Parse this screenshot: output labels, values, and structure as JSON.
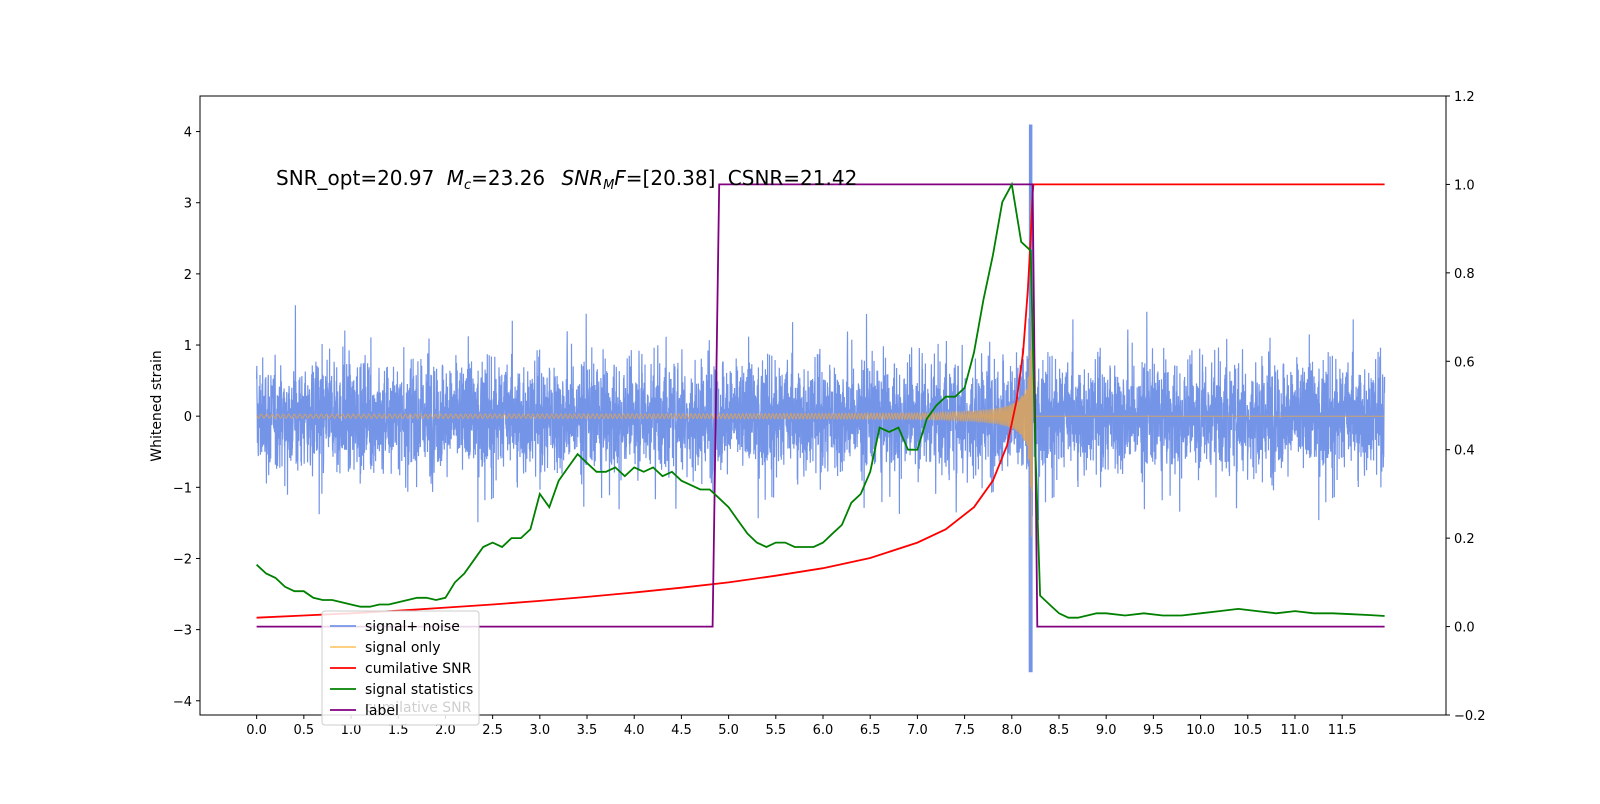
{
  "chart_data": {
    "type": "line",
    "annotation": {
      "snr_opt": "SNR_opt=20.97",
      "mc_sym": "M",
      "mc_sub": "c",
      "mc_val": "=23.26",
      "snrmf_sym": "SNR",
      "snrmf_sub": "M",
      "snrmf_f": "F",
      "snrmf_val": "=[20.38]",
      "csnr": "CSNR=21.42"
    },
    "ylabel": "Whitened strain",
    "xlim": [
      -0.6,
      12.6
    ],
    "ylim": [
      -4.2,
      4.5
    ],
    "y2lim": [
      -0.2,
      1.2
    ],
    "xticks": [
      "0.0",
      "0.5",
      "1.0",
      "1.5",
      "2.0",
      "2.5",
      "3.0",
      "3.5",
      "4.0",
      "4.5",
      "5.0",
      "5.5",
      "6.0",
      "6.5",
      "7.0",
      "7.5",
      "8.0",
      "8.5",
      "9.0",
      "9.5",
      "10.0",
      "10.5",
      "11.0",
      "11.5"
    ],
    "yticks": [
      "4",
      "3",
      "2",
      "1",
      "0",
      "−1",
      "−2",
      "−3",
      "−4"
    ],
    "y2ticks": [
      "1.2",
      "1.0",
      "0.8",
      "0.6",
      "0.4",
      "0.2",
      "0.0",
      "−0.2"
    ],
    "legend": {
      "position": "lower-left",
      "entries": [
        {
          "label": "signal+ noise",
          "color": "#7494e8"
        },
        {
          "label": "signal only",
          "color": "#ffc870"
        },
        {
          "label": "cumilative SNR",
          "color": "#ff0000"
        },
        {
          "label": "signal statistics",
          "color": "#008000"
        },
        {
          "label": "label",
          "color": "#800080"
        }
      ],
      "ghost_text": "cumilative SNR"
    },
    "series": [
      {
        "name": "signal statistics",
        "axis": "right",
        "color": "#008000",
        "x": [
          0.0,
          0.1,
          0.2,
          0.3,
          0.4,
          0.5,
          0.6,
          0.7,
          0.8,
          0.9,
          1.0,
          1.1,
          1.2,
          1.3,
          1.4,
          1.5,
          1.6,
          1.7,
          1.8,
          1.9,
          2.0,
          2.1,
          2.2,
          2.3,
          2.4,
          2.5,
          2.6,
          2.7,
          2.8,
          2.9,
          3.0,
          3.1,
          3.2,
          3.3,
          3.4,
          3.5,
          3.6,
          3.7,
          3.8,
          3.9,
          4.0,
          4.1,
          4.2,
          4.3,
          4.4,
          4.5,
          4.6,
          4.7,
          4.8,
          4.9,
          5.0,
          5.1,
          5.2,
          5.3,
          5.4,
          5.5,
          5.6,
          5.7,
          5.8,
          5.9,
          6.0,
          6.1,
          6.2,
          6.3,
          6.4,
          6.5,
          6.6,
          6.7,
          6.8,
          6.9,
          7.0,
          7.1,
          7.2,
          7.3,
          7.4,
          7.5,
          7.6,
          7.7,
          7.8,
          7.9,
          8.0,
          8.1,
          8.2,
          8.25,
          8.3,
          8.4,
          8.5,
          8.6,
          8.7,
          8.8,
          8.9,
          9.0,
          9.2,
          9.4,
          9.6,
          9.8,
          10.0,
          10.2,
          10.4,
          10.6,
          10.8,
          11.0,
          11.2,
          11.4,
          11.6,
          11.8,
          11.95
        ],
        "values": [
          0.14,
          0.12,
          0.11,
          0.09,
          0.08,
          0.08,
          0.065,
          0.06,
          0.06,
          0.055,
          0.05,
          0.045,
          0.045,
          0.05,
          0.05,
          0.055,
          0.06,
          0.065,
          0.065,
          0.06,
          0.065,
          0.1,
          0.12,
          0.15,
          0.18,
          0.19,
          0.18,
          0.2,
          0.2,
          0.22,
          0.3,
          0.27,
          0.33,
          0.36,
          0.39,
          0.37,
          0.35,
          0.35,
          0.36,
          0.34,
          0.36,
          0.35,
          0.36,
          0.34,
          0.35,
          0.33,
          0.32,
          0.31,
          0.31,
          0.29,
          0.27,
          0.24,
          0.21,
          0.19,
          0.18,
          0.19,
          0.19,
          0.18,
          0.18,
          0.18,
          0.19,
          0.21,
          0.23,
          0.28,
          0.3,
          0.35,
          0.45,
          0.44,
          0.45,
          0.4,
          0.4,
          0.47,
          0.5,
          0.52,
          0.52,
          0.54,
          0.62,
          0.74,
          0.84,
          0.96,
          1.0,
          0.87,
          0.85,
          0.4,
          0.07,
          0.05,
          0.03,
          0.02,
          0.02,
          0.025,
          0.03,
          0.03,
          0.025,
          0.03,
          0.025,
          0.025,
          0.03,
          0.035,
          0.04,
          0.035,
          0.03,
          0.035,
          0.03,
          0.03,
          0.028,
          0.026,
          0.024
        ]
      },
      {
        "name": "cumilative SNR",
        "axis": "right",
        "color": "#ff0000",
        "x": [
          0.0,
          0.5,
          1.0,
          1.5,
          2.0,
          2.5,
          3.0,
          3.5,
          4.0,
          4.5,
          5.0,
          5.5,
          6.0,
          6.5,
          7.0,
          7.3,
          7.6,
          7.8,
          7.95,
          8.05,
          8.12,
          8.17,
          8.2,
          8.22,
          8.23,
          9.0,
          10.0,
          11.0,
          11.95
        ],
        "values": [
          0.02,
          0.025,
          0.03,
          0.036,
          0.043,
          0.05,
          0.058,
          0.067,
          0.077,
          0.088,
          0.1,
          0.115,
          0.132,
          0.155,
          0.19,
          0.22,
          0.27,
          0.33,
          0.41,
          0.51,
          0.62,
          0.76,
          0.88,
          0.98,
          1.0,
          1.0,
          1.0,
          1.0,
          1.0
        ]
      },
      {
        "name": "label",
        "axis": "right",
        "color": "#800080",
        "x": [
          0.0,
          4.83,
          4.9,
          8.22,
          8.27,
          11.95
        ],
        "values": [
          0.0,
          0.0,
          1.0,
          1.0,
          0.0,
          0.0
        ]
      }
    ]
  }
}
